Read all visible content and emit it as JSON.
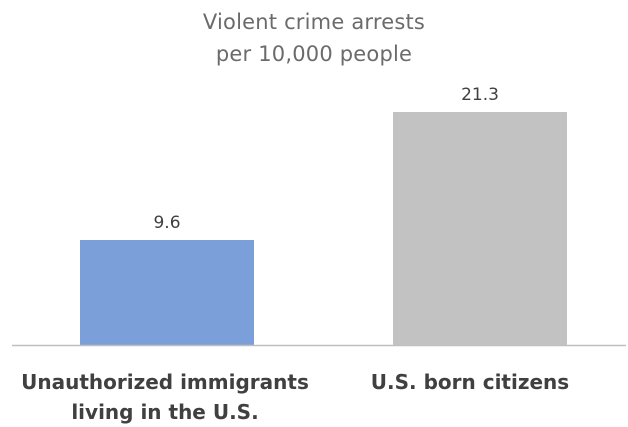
{
  "chart_data": {
    "type": "bar",
    "title_lines": [
      "Violent crime arrests",
      "per 10,000 people"
    ],
    "categories": [
      [
        "Unauthorized immigrants",
        "living in the U.S."
      ],
      [
        "U.S. born citizens"
      ]
    ],
    "values": [
      9.6,
      21.3
    ],
    "data_labels": [
      "9.6",
      "21.3"
    ],
    "colors": [
      "#7b9fd8",
      "#c2c2c2"
    ],
    "axis_color": "#bfbfbf",
    "ylim": [
      0,
      21.3
    ],
    "grid": false,
    "legend": "none"
  }
}
